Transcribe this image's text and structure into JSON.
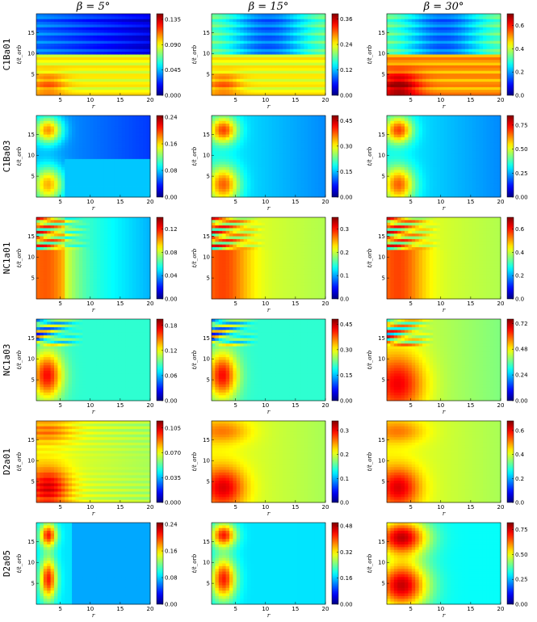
{
  "chart_data": {
    "type": "heatmap",
    "column_titles": [
      "β = 5°",
      "β = 15°",
      "β = 30°"
    ],
    "row_labels": [
      "C1Ba01",
      "C1Ba03",
      "NC1a01",
      "NC1a03",
      "D2a01",
      "D2a05"
    ],
    "xlabel": "r",
    "ylabel": "t/t_orb",
    "xlim": [
      1,
      20
    ],
    "ylim": [
      0,
      19.5
    ],
    "xticks": [
      "5",
      "10",
      "15",
      "20"
    ],
    "xtick_values": [
      5,
      10,
      15,
      20
    ],
    "yticks": [
      "5",
      "10",
      "15"
    ],
    "ytick_values": [
      5,
      10,
      15
    ],
    "colormap": "jet",
    "colorbar_ticks": [
      [
        [
          "0.000",
          "0.045",
          "0.090",
          "0.135"
        ],
        [
          "0.00",
          "0.12",
          "0.24",
          "0.36"
        ],
        [
          "0.0",
          "0.2",
          "0.4",
          "0.6"
        ]
      ],
      [
        [
          "0.00",
          "0.08",
          "0.16",
          "0.24"
        ],
        [
          "0.00",
          "0.15",
          "0.30",
          "0.45"
        ],
        [
          "0.00",
          "0.25",
          "0.50",
          "0.75"
        ]
      ],
      [
        [
          "0.00",
          "0.04",
          "0.08",
          "0.12"
        ],
        [
          "0.0",
          "0.1",
          "0.2",
          "0.3"
        ],
        [
          "0.0",
          "0.2",
          "0.4",
          "0.6"
        ]
      ],
      [
        [
          "0.00",
          "0.06",
          "0.12",
          "0.18"
        ],
        [
          "0.00",
          "0.15",
          "0.30",
          "0.45"
        ],
        [
          "0.00",
          "0.24",
          "0.48",
          "0.72"
        ]
      ],
      [
        [
          "0.000",
          "0.035",
          "0.070",
          "0.105"
        ],
        [
          "0.0",
          "0.1",
          "0.2",
          "0.3"
        ],
        [
          "0.0",
          "0.2",
          "0.4",
          "0.6"
        ]
      ],
      [
        [
          "0.00",
          "0.08",
          "0.16",
          "0.24"
        ],
        [
          "0.00",
          "0.16",
          "0.32",
          "0.48"
        ],
        [
          "0.00",
          "0.25",
          "0.50",
          "0.75"
        ]
      ]
    ],
    "colorbar_max": [
      [
        0.145,
        0.385,
        0.7
      ],
      [
        0.245,
        0.48,
        0.85
      ],
      [
        0.14,
        0.35,
        0.7
      ],
      [
        0.195,
        0.48,
        0.76
      ],
      [
        0.115,
        0.34,
        0.68
      ],
      [
        0.245,
        0.5,
        0.82
      ]
    ]
  }
}
